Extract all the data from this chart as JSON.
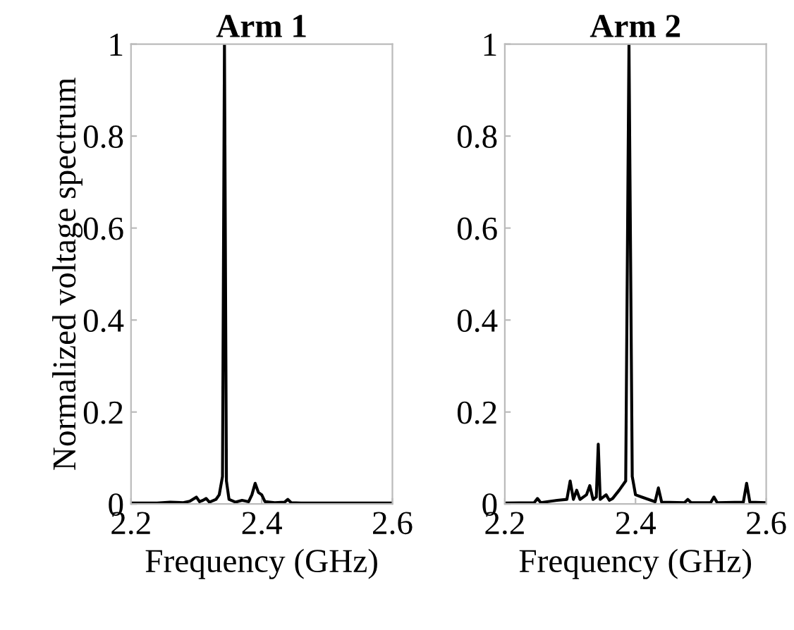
{
  "chart_data": [
    {
      "type": "line",
      "title": "Arm 1",
      "xlabel": "Frequency (GHz)",
      "ylabel": "Normalized voltage spectrum",
      "xlim": [
        2.2,
        2.6
      ],
      "xticks": [
        2.2,
        2.4,
        2.6
      ],
      "ylim": [
        0,
        1
      ],
      "yticks": [
        0,
        0.2,
        0.4,
        0.6,
        0.8,
        1
      ],
      "grid": false,
      "legend": false,
      "x": [
        2.2,
        2.24,
        2.26,
        2.28,
        2.29,
        2.3,
        2.305,
        2.31,
        2.315,
        2.32,
        2.33,
        2.335,
        2.34,
        2.343,
        2.346,
        2.35,
        2.36,
        2.37,
        2.38,
        2.385,
        2.39,
        2.395,
        2.4,
        2.405,
        2.42,
        2.435,
        2.44,
        2.445,
        2.46,
        2.5,
        2.55,
        2.6
      ],
      "series": [
        {
          "color": "#000000",
          "values": [
            0.002,
            0.002,
            0.004,
            0.003,
            0.006,
            0.015,
            0.005,
            0.008,
            0.012,
            0.004,
            0.01,
            0.02,
            0.06,
            1.0,
            0.05,
            0.01,
            0.004,
            0.008,
            0.005,
            0.02,
            0.045,
            0.025,
            0.02,
            0.005,
            0.003,
            0.004,
            0.01,
            0.003,
            0.002,
            0.002,
            0.002,
            0.002
          ]
        }
      ]
    },
    {
      "type": "line",
      "title": "Arm 2",
      "xlabel": "Frequency (GHz)",
      "xlim": [
        2.2,
        2.6
      ],
      "xticks": [
        2.2,
        2.4,
        2.6
      ],
      "ylim": [
        0,
        1
      ],
      "yticks": [
        0,
        0.2,
        0.4,
        0.6,
        0.8,
        1
      ],
      "grid": false,
      "legend": false,
      "x": [
        2.2,
        2.245,
        2.25,
        2.255,
        2.28,
        2.295,
        2.3,
        2.305,
        2.31,
        2.315,
        2.325,
        2.33,
        2.335,
        2.34,
        2.343,
        2.346,
        2.355,
        2.36,
        2.365,
        2.375,
        2.385,
        2.39,
        2.395,
        2.4,
        2.41,
        2.43,
        2.435,
        2.44,
        2.475,
        2.48,
        2.485,
        2.515,
        2.52,
        2.525,
        2.565,
        2.57,
        2.575,
        2.6
      ],
      "series": [
        {
          "color": "#000000",
          "values": [
            0.002,
            0.003,
            0.012,
            0.003,
            0.008,
            0.01,
            0.05,
            0.01,
            0.03,
            0.01,
            0.02,
            0.04,
            0.01,
            0.015,
            0.13,
            0.01,
            0.02,
            0.008,
            0.012,
            0.03,
            0.05,
            1.0,
            0.06,
            0.02,
            0.015,
            0.005,
            0.035,
            0.004,
            0.003,
            0.01,
            0.003,
            0.003,
            0.015,
            0.003,
            0.004,
            0.045,
            0.004,
            0.003
          ]
        }
      ]
    }
  ]
}
